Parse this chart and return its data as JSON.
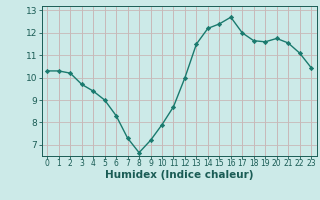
{
  "xlabel": "Humidex (Indice chaleur)",
  "x": [
    0,
    1,
    2,
    3,
    4,
    5,
    6,
    7,
    8,
    9,
    10,
    11,
    12,
    13,
    14,
    15,
    16,
    17,
    18,
    19,
    20,
    21,
    22,
    23
  ],
  "y": [
    10.3,
    10.3,
    10.2,
    9.7,
    9.4,
    9.0,
    8.3,
    7.3,
    6.65,
    7.2,
    7.9,
    8.7,
    10.0,
    11.5,
    12.2,
    12.4,
    12.7,
    12.0,
    11.65,
    11.6,
    11.75,
    11.55,
    11.1,
    10.45
  ],
  "line_color": "#1a7a6e",
  "marker": "D",
  "marker_size": 2.2,
  "bg_color": "#cceae8",
  "hgrid_color": "#c8b8b8",
  "vgrid_color": "#c8b0b0",
  "tick_color": "#1a5c55",
  "label_color": "#1a5c55",
  "ylim": [
    6.5,
    13.2
  ],
  "yticks": [
    7,
    8,
    9,
    10,
    11,
    12,
    13
  ],
  "xticks": [
    0,
    1,
    2,
    3,
    4,
    5,
    6,
    7,
    8,
    9,
    10,
    11,
    12,
    13,
    14,
    15,
    16,
    17,
    18,
    19,
    20,
    21,
    22,
    23
  ],
  "xlabel_fontsize": 7.5,
  "ytick_fontsize": 6.5,
  "xtick_fontsize": 5.5
}
